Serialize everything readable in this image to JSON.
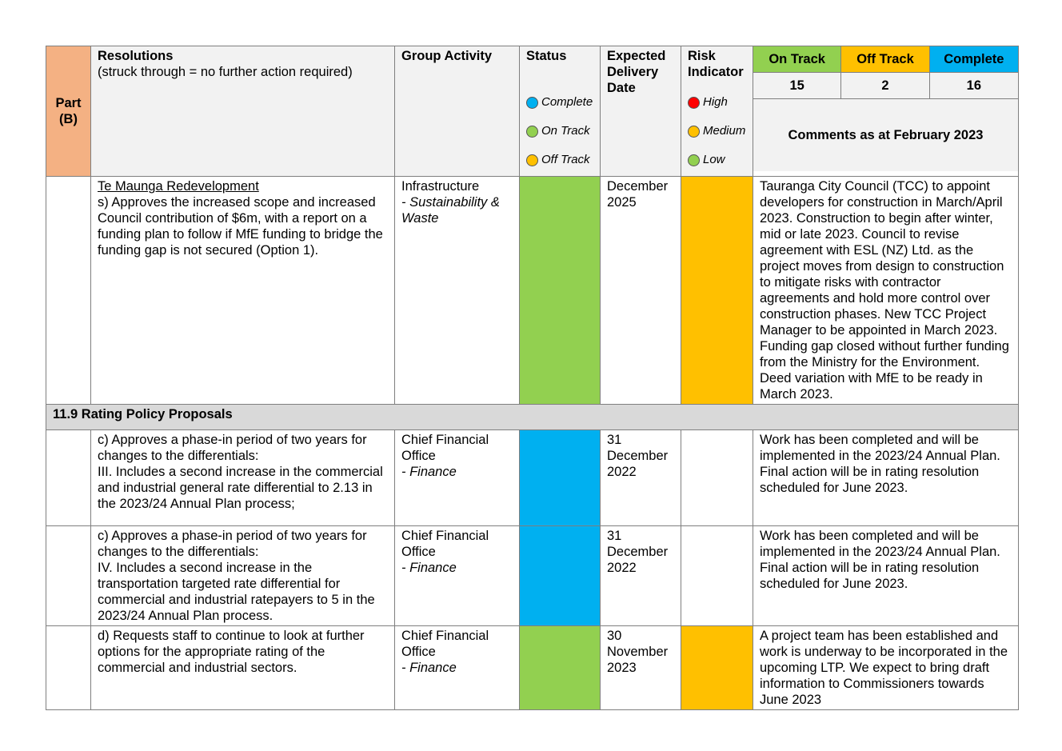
{
  "header": {
    "part": "Part (B)",
    "resolutions_title": "Resolutions",
    "resolutions_sub": "(struck through = no further action required)",
    "group_activity": "Group Activity",
    "status": "Status",
    "status_legend": [
      {
        "label": "Complete",
        "color": "#00b0f0"
      },
      {
        "label": "On Track",
        "color": "#92d050"
      },
      {
        "label": "Off Track",
        "color": "#ffc000"
      }
    ],
    "expected_delivery": "Expected Delivery Date",
    "risk": "Risk Indicator",
    "risk_legend": [
      {
        "label": "High",
        "color": "#ff0000"
      },
      {
        "label": "Medium",
        "color": "#ffc000"
      },
      {
        "label": "Low",
        "color": "#92d050"
      }
    ],
    "summary": {
      "on_track_label": "On Track",
      "on_track_count": "15",
      "on_track_color": "#92d050",
      "off_track_label": "Off Track",
      "off_track_count": "2",
      "off_track_color": "#ffc000",
      "complete_label": "Complete",
      "complete_count": "16",
      "complete_color": "#00b0f0"
    },
    "comments_title": "Comments as at February 2023"
  },
  "rows": [
    {
      "title": "Te Maunga Redevelopment",
      "resolution": "s) Approves the increased scope and increased Council contribution of $6m, with a report on a funding plan to follow if MfE funding to bridge the funding gap is not secured (Option 1).",
      "group": "Infrastructure",
      "activity": "- Sustainability & Waste",
      "status_color": "#92d050",
      "delivery": "December 2025",
      "risk_color": "#ffc000",
      "comment": "Tauranga City Council (TCC) to appoint developers for construction in March/April 2023. Construction to begin after winter, mid or late 2023. Council to revise agreement with ESL (NZ) Ltd. as the project moves from design to construction to mitigate risks with contractor agreements and hold more control over construction phases. New TCC Project Manager to be appointed in March 2023. Funding gap closed without further funding from the Ministry for the Environment. Deed variation with MfE to be ready in March 2023."
    }
  ],
  "section": "11.9 Rating Policy Proposals",
  "rows2": [
    {
      "resolution_a": "c)  Approves a phase-in period of two years for changes to the differentials:",
      "resolution_b": "III.  Includes a second increase in the commercial and industrial general rate differential to 2.13 in the 2023/24 Annual Plan process;",
      "group": "Chief Financial Office",
      "activity": "- Finance",
      "status_color": "#00b0f0",
      "delivery": "31 December 2022",
      "risk_color": "",
      "comment": "Work has been completed and will be implemented in the 2023/24 Annual Plan. Final action will be in rating resolution scheduled for June 2023."
    },
    {
      "resolution_a": "c)  Approves a phase-in period of two years for changes to the differentials:",
      "resolution_b": "IV.  Includes a second increase in the transportation targeted rate differential for commercial and industrial ratepayers to 5 in the 2023/24 Annual Plan process.",
      "group": "Chief Financial Office",
      "activity": "- Finance",
      "status_color": "#00b0f0",
      "delivery": "31 December 2022",
      "risk_color": "",
      "comment": "Work has been completed and will be implemented in the 2023/24 Annual Plan. Final action will be in rating resolution scheduled for June 2023."
    },
    {
      "resolution_a": "d)  Requests staff to continue to look at further options for the appropriate rating of the commercial and industrial sectors.",
      "resolution_b": "",
      "group": "Chief Financial Office",
      "activity": "- Finance",
      "status_color": "#92d050",
      "delivery": "30 November 2023",
      "risk_color": "#ffc000",
      "comment": "A project team has been established and work is underway to be incorporated in the upcoming LTP. We expect to bring draft information to Commissioners towards June 2023"
    }
  ]
}
